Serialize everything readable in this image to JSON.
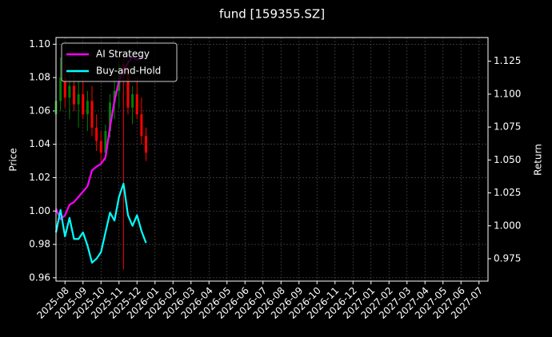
{
  "chart_data": {
    "type": "candlestick",
    "title": "fund [159355.SZ]",
    "ylabel": "Price",
    "y2label": "Return",
    "grid": true,
    "legend": "upper left",
    "up_color": "#008000",
    "down_color": "#ff0000",
    "categories": [
      null,
      null,
      "2025-08",
      null,
      null,
      null,
      "2025-09",
      null,
      null,
      null,
      "2025-10",
      null,
      null,
      null,
      "2025-11",
      null,
      null,
      null,
      "2025-12",
      null,
      null,
      null,
      "2026-01",
      null,
      null,
      null,
      "2026-02",
      null,
      null,
      null,
      "2026-03",
      null,
      null,
      null,
      "2026-04",
      null,
      null,
      null,
      "2026-05",
      null,
      null,
      null,
      "2026-06",
      null,
      null,
      null,
      "2026-07",
      null,
      null,
      null,
      "2026-08",
      null,
      null,
      null,
      "2026-09",
      null,
      null,
      null,
      "2026-10",
      null,
      null,
      null,
      "2026-11",
      null,
      null,
      null,
      "2026-12",
      null,
      null,
      null,
      "2027-01",
      null,
      null,
      null,
      "2027-02",
      null,
      null,
      null,
      "2027-03",
      null,
      null,
      null,
      "2027-04",
      null,
      null,
      null,
      "2027-05",
      null,
      null,
      null,
      "2027-06",
      null,
      null,
      null,
      "2027-07",
      null,
      null
    ],
    "candles": {
      "open": [
        1.058,
        1.066,
        1.08,
        1.068,
        1.075,
        1.064,
        1.07,
        1.058,
        1.066,
        1.05,
        1.042,
        1.035,
        1.048,
        1.065,
        1.072,
        1.088,
        1.082,
        1.062,
        1.07,
        1.058,
        1.045,
        null,
        null,
        null,
        null,
        null,
        null,
        null,
        null,
        null,
        null,
        null,
        null,
        null,
        null,
        null,
        null,
        null,
        null,
        null,
        null,
        null,
        null,
        null,
        null,
        null,
        null,
        null,
        null,
        null,
        null,
        null,
        null,
        null,
        null,
        null,
        null,
        null,
        null,
        null,
        null,
        null,
        null,
        null,
        null,
        null,
        null,
        null,
        null,
        null,
        null,
        null,
        null,
        null,
        null,
        null,
        null,
        null,
        null,
        null,
        null,
        null,
        null,
        null,
        null,
        null,
        null,
        null,
        null,
        null,
        null,
        null,
        null,
        null,
        null,
        null,
        null
      ],
      "high": [
        1.072,
        1.092,
        1.088,
        1.082,
        1.085,
        1.078,
        1.08,
        1.072,
        1.075,
        1.058,
        1.048,
        1.052,
        1.07,
        1.08,
        1.092,
        1.095,
        1.09,
        1.075,
        1.08,
        1.068,
        1.05,
        null,
        null,
        null,
        null,
        null,
        null,
        null,
        null,
        null,
        null,
        null,
        null,
        null,
        null,
        null,
        null,
        null,
        null,
        null,
        null,
        null,
        null,
        null,
        null,
        null,
        null,
        null,
        null,
        null,
        null,
        null,
        null,
        null,
        null,
        null,
        null,
        null,
        null,
        null,
        null,
        null,
        null,
        null,
        null,
        null,
        null,
        null,
        null,
        null,
        null,
        null,
        null,
        null,
        null,
        null,
        null,
        null,
        null,
        null,
        null,
        null,
        null,
        null,
        null,
        null,
        null,
        null,
        null,
        null,
        null,
        null,
        null,
        null,
        null,
        null,
        null
      ],
      "low": [
        1.052,
        1.06,
        1.062,
        1.055,
        1.06,
        1.05,
        1.055,
        1.048,
        1.045,
        1.036,
        1.028,
        1.03,
        1.044,
        1.055,
        1.062,
        0.965,
        1.058,
        1.052,
        1.055,
        1.04,
        1.03,
        null,
        null,
        null,
        null,
        null,
        null,
        null,
        null,
        null,
        null,
        null,
        null,
        null,
        null,
        null,
        null,
        null,
        null,
        null,
        null,
        null,
        null,
        null,
        null,
        null,
        null,
        null,
        null,
        null,
        null,
        null,
        null,
        null,
        null,
        null,
        null,
        null,
        null,
        null,
        null,
        null,
        null,
        null,
        null,
        null,
        null,
        null,
        null,
        null,
        null,
        null,
        null,
        null,
        null,
        null,
        null,
        null,
        null,
        null,
        null,
        null,
        null,
        null,
        null,
        null,
        null,
        null,
        null,
        null,
        null,
        null,
        null,
        null,
        null,
        null,
        null
      ],
      "close": [
        1.066,
        1.08,
        1.068,
        1.075,
        1.064,
        1.07,
        1.058,
        1.066,
        1.05,
        1.042,
        1.035,
        1.048,
        1.065,
        1.072,
        1.088,
        1.082,
        1.062,
        1.07,
        1.058,
        1.045,
        1.035,
        null,
        null,
        null,
        null,
        null,
        null,
        null,
        null,
        null,
        null,
        null,
        null,
        null,
        null,
        null,
        null,
        null,
        null,
        null,
        null,
        null,
        null,
        null,
        null,
        null,
        null,
        null,
        null,
        null,
        null,
        null,
        null,
        null,
        null,
        null,
        null,
        null,
        null,
        null,
        null,
        null,
        null,
        null,
        null,
        null,
        null,
        null,
        null,
        null,
        null,
        null,
        null,
        null,
        null,
        null,
        null,
        null,
        null,
        null,
        null,
        null,
        null,
        null,
        null,
        null,
        null,
        null,
        null,
        null,
        null,
        null,
        null,
        null,
        null,
        null,
        null
      ]
    },
    "series": [
      {
        "name": "AI Strategy",
        "color": "#ff00ff",
        "axis": "y2",
        "values": [
          1.013,
          1.005,
          1.008,
          1.016,
          1.018,
          1.022,
          1.026,
          1.03,
          1.042,
          1.045,
          1.047,
          1.052,
          1.075,
          1.095,
          1.11,
          1.118,
          1.124,
          1.128,
          1.126,
          1.128,
          1.127,
          null,
          null,
          null,
          null,
          null,
          null,
          null,
          null,
          null,
          null,
          null,
          null,
          null,
          null,
          null,
          null,
          null,
          null,
          null,
          null,
          null,
          null,
          null,
          null,
          null,
          null,
          null,
          null,
          null,
          null,
          null,
          null,
          null,
          null,
          null,
          null,
          null,
          null,
          null,
          null,
          null,
          null,
          null,
          null,
          null,
          null,
          null,
          null,
          null,
          null,
          null,
          null,
          null,
          null,
          null,
          null,
          null,
          null,
          null,
          null,
          null,
          null,
          null,
          null,
          null,
          null,
          null,
          null,
          null,
          null,
          null,
          null,
          null,
          null,
          null,
          null
        ]
      },
      {
        "name": "Buy-and-Hold",
        "color": "#00ffff",
        "axis": "y2",
        "values": [
          0.995,
          1.012,
          0.992,
          1.006,
          0.99,
          0.99,
          0.995,
          0.985,
          0.972,
          0.975,
          0.98,
          0.995,
          1.01,
          1.004,
          1.022,
          1.032,
          1.008,
          1.0,
          1.008,
          0.996,
          0.987,
          null,
          null,
          null,
          null,
          null,
          null,
          null,
          null,
          null,
          null,
          null,
          null,
          null,
          null,
          null,
          null,
          null,
          null,
          null,
          null,
          null,
          null,
          null,
          null,
          null,
          null,
          null,
          null,
          null,
          null,
          null,
          null,
          null,
          null,
          null,
          null,
          null,
          null,
          null,
          null,
          null,
          null,
          null,
          null,
          null,
          null,
          null,
          null,
          null,
          null,
          null,
          null,
          null,
          null,
          null,
          null,
          null,
          null,
          null,
          null,
          null,
          null,
          null,
          null,
          null,
          null,
          null,
          null,
          null,
          null,
          null,
          null,
          null,
          null,
          null,
          null
        ]
      }
    ],
    "ylim": [
      0.958,
      1.104
    ],
    "yticks": [
      0.96,
      0.98,
      {
        "value": 1,
        "label": "1.00"
      },
      1.02,
      1.04,
      1.06,
      1.08,
      {
        "value": 1.1,
        "label": "1.10"
      }
    ],
    "y2lim": [
      0.958,
      1.143
    ],
    "y2ticks": [
      0.975,
      {
        "value": 1,
        "label": "1.000"
      },
      1.025,
      {
        "value": 1.05,
        "label": "1.050"
      },
      1.075,
      {
        "value": 1.1,
        "label": "1.100"
      },
      1.125
    ]
  }
}
